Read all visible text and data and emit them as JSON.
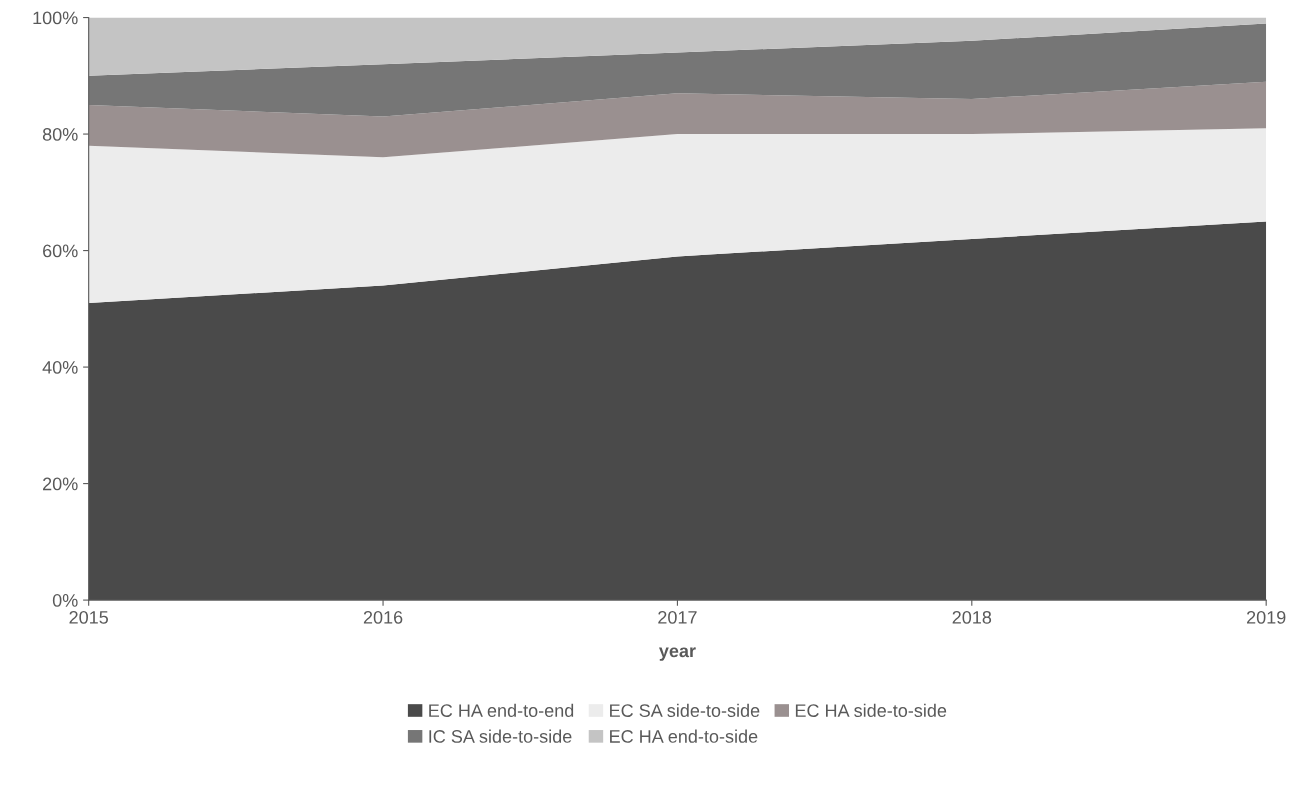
{
  "chart_data": {
    "type": "area",
    "stacked": true,
    "xlabel": "year",
    "x": [
      2015,
      2016,
      2017,
      2018,
      2019
    ],
    "series": [
      {
        "name": "EC HA end-to-end",
        "color": "#4a4a4a",
        "values": [
          51,
          54,
          59,
          62,
          65
        ]
      },
      {
        "name": "EC SA side-to-side",
        "color": "#ececec",
        "values": [
          27,
          22,
          21,
          18,
          16
        ]
      },
      {
        "name": "EC HA side-to-side",
        "color": "#9a9090",
        "values": [
          7,
          7,
          7,
          6,
          8
        ]
      },
      {
        "name": "IC SA side-to-side",
        "color": "#767676",
        "values": [
          5,
          9,
          7,
          10,
          10
        ]
      },
      {
        "name": "EC HA end-to-side",
        "color": "#c4c4c4",
        "values": [
          10,
          8,
          6,
          4,
          1
        ]
      }
    ],
    "xlim": [
      2015,
      2019
    ],
    "xticks": [
      2015,
      2016,
      2017,
      2018,
      2019
    ],
    "ylim": [
      0,
      100
    ],
    "yticks": [
      {
        "value": 0,
        "label": "0%"
      },
      {
        "value": 20,
        "label": "20%"
      },
      {
        "value": 40,
        "label": "40%"
      },
      {
        "value": 60,
        "label": "60%"
      },
      {
        "value": 80,
        "label": "80%"
      },
      {
        "value": 100,
        "label": "100%"
      }
    ],
    "grid": false,
    "legend": "bottom"
  }
}
